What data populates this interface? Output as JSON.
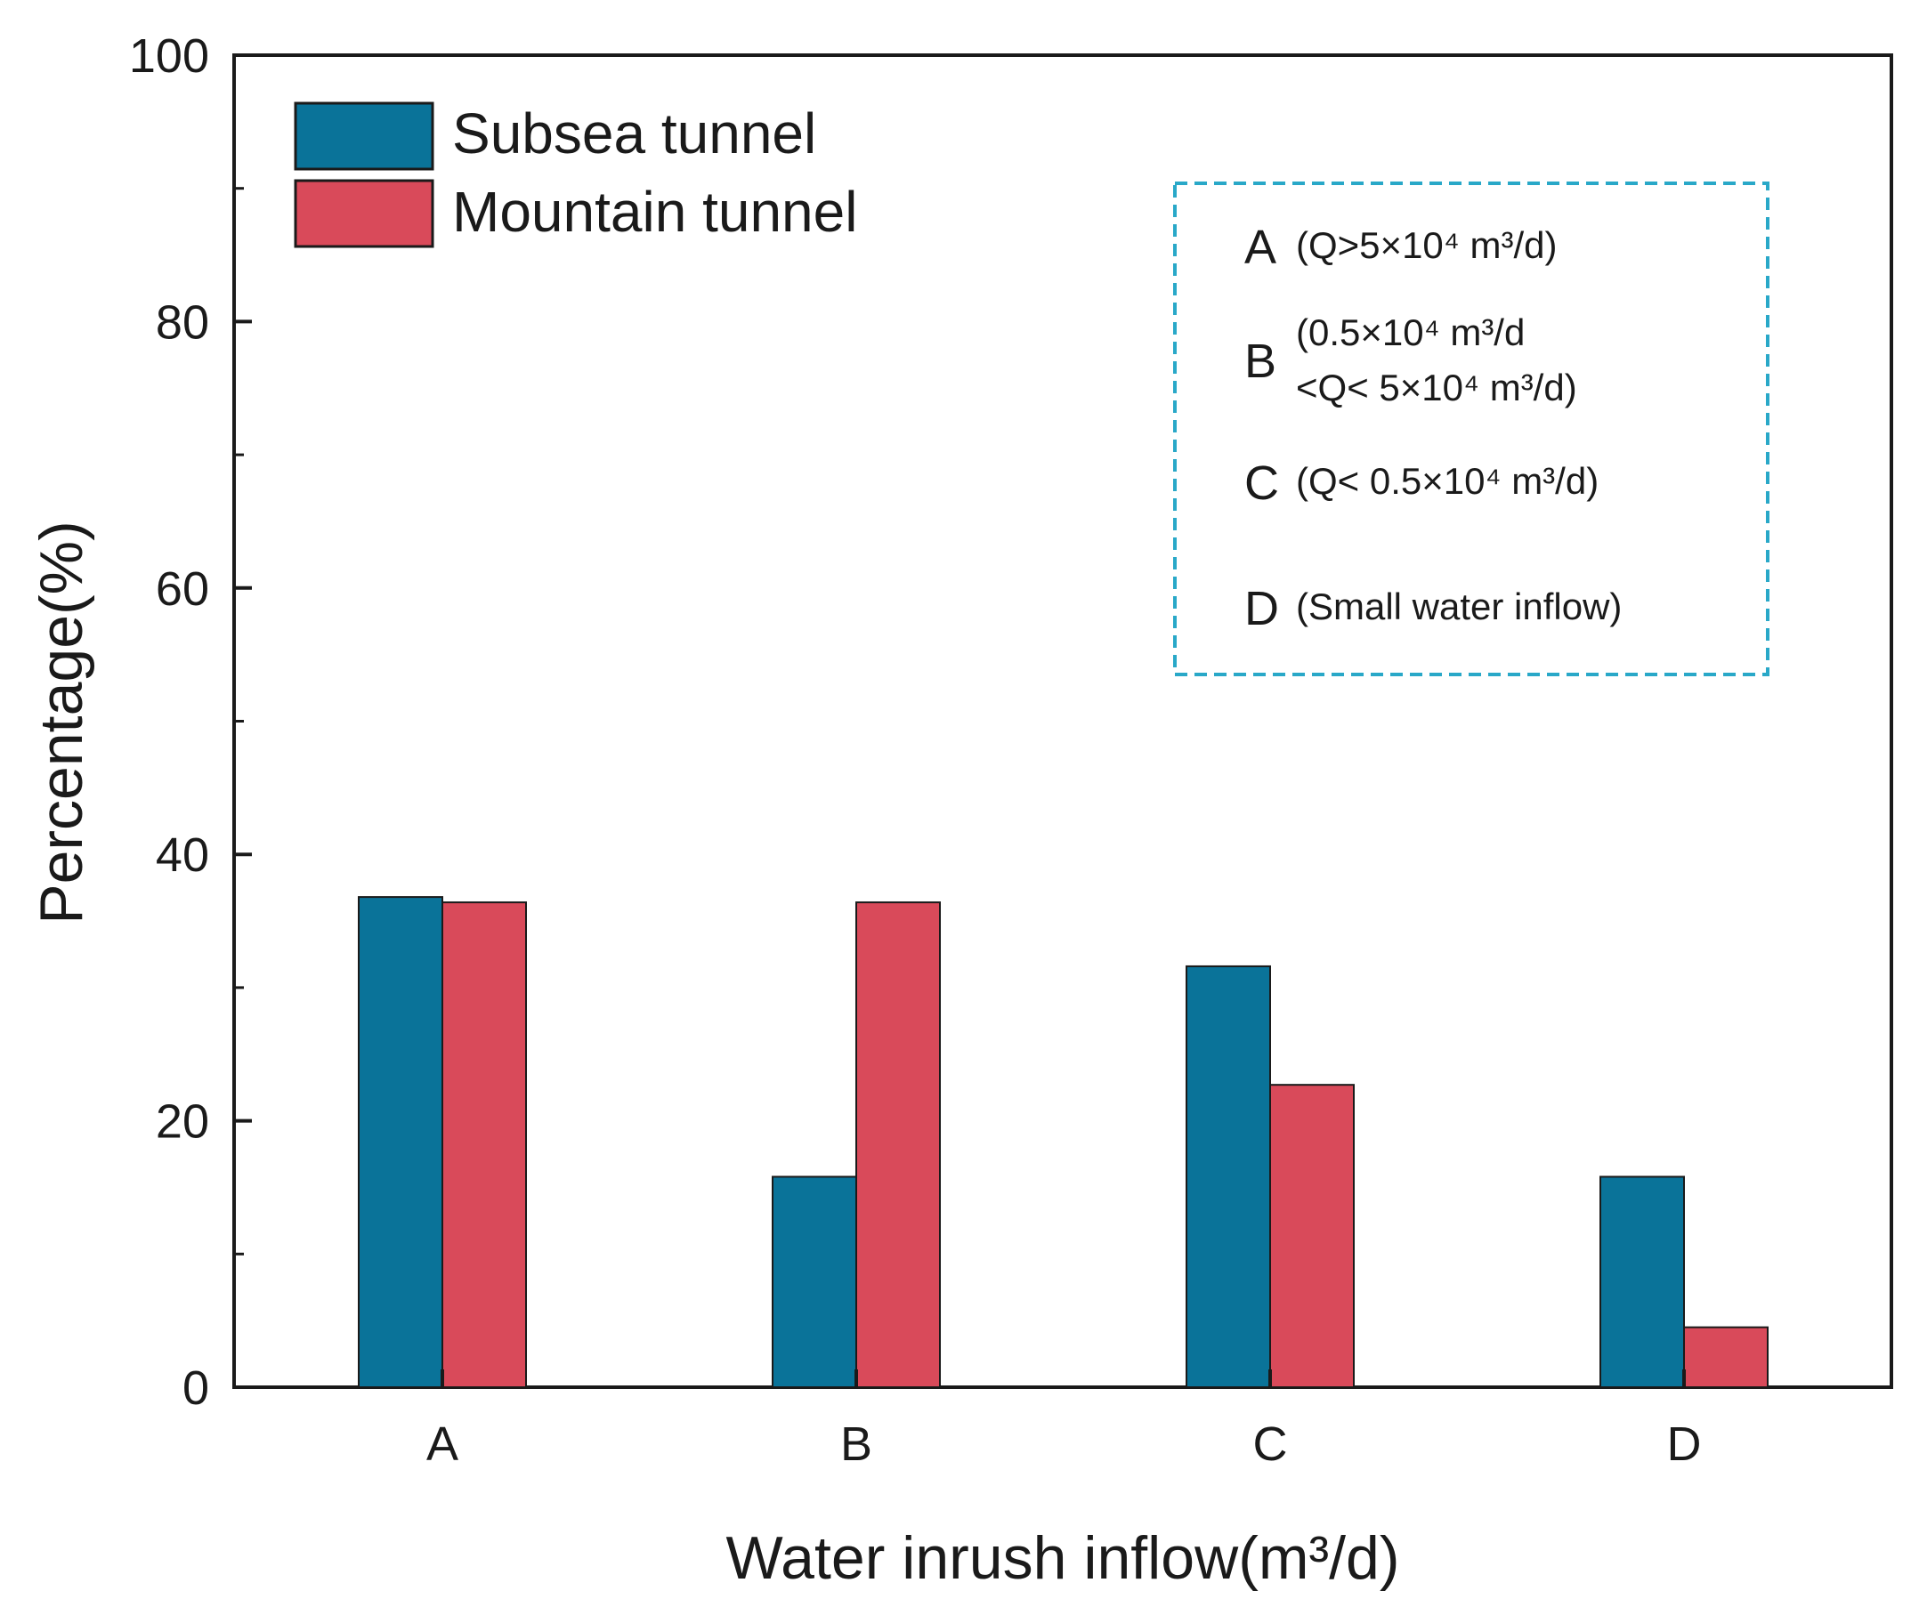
{
  "chart_data": {
    "type": "bar",
    "categories": [
      "A",
      "B",
      "C",
      "D"
    ],
    "series": [
      {
        "name": "Subsea tunnel",
        "color": "#0a7399",
        "values": [
          36.8,
          15.8,
          31.6,
          15.8
        ]
      },
      {
        "name": "Mountain tunnel",
        "color": "#d94a5a",
        "values": [
          36.4,
          36.4,
          22.7,
          4.5
        ]
      }
    ],
    "title": "",
    "xlabel": "Water inrush inflow(m³/d)",
    "ylabel": "Percentage(%)",
    "ylim": [
      0,
      100
    ],
    "yticks": [
      "0",
      "20",
      "40",
      "60",
      "80",
      "100"
    ],
    "legend": {
      "position": "top-left",
      "entries": [
        "Subsea tunnel",
        "Mountain tunnel"
      ]
    },
    "note_box": {
      "border_color": "#29a8c8",
      "entries": [
        {
          "letter": "A",
          "text": "(Q>5×10⁴ m³/d)"
        },
        {
          "letter": "B",
          "text_line1": "(0.5×10⁴ m³/d",
          "text_line2": "<Q< 5×10⁴ m³/d)"
        },
        {
          "letter": "C",
          "text": "(Q< 0.5×10⁴ m³/d)"
        },
        {
          "letter": "D",
          "text": "(Small water inflow)"
        }
      ]
    }
  }
}
